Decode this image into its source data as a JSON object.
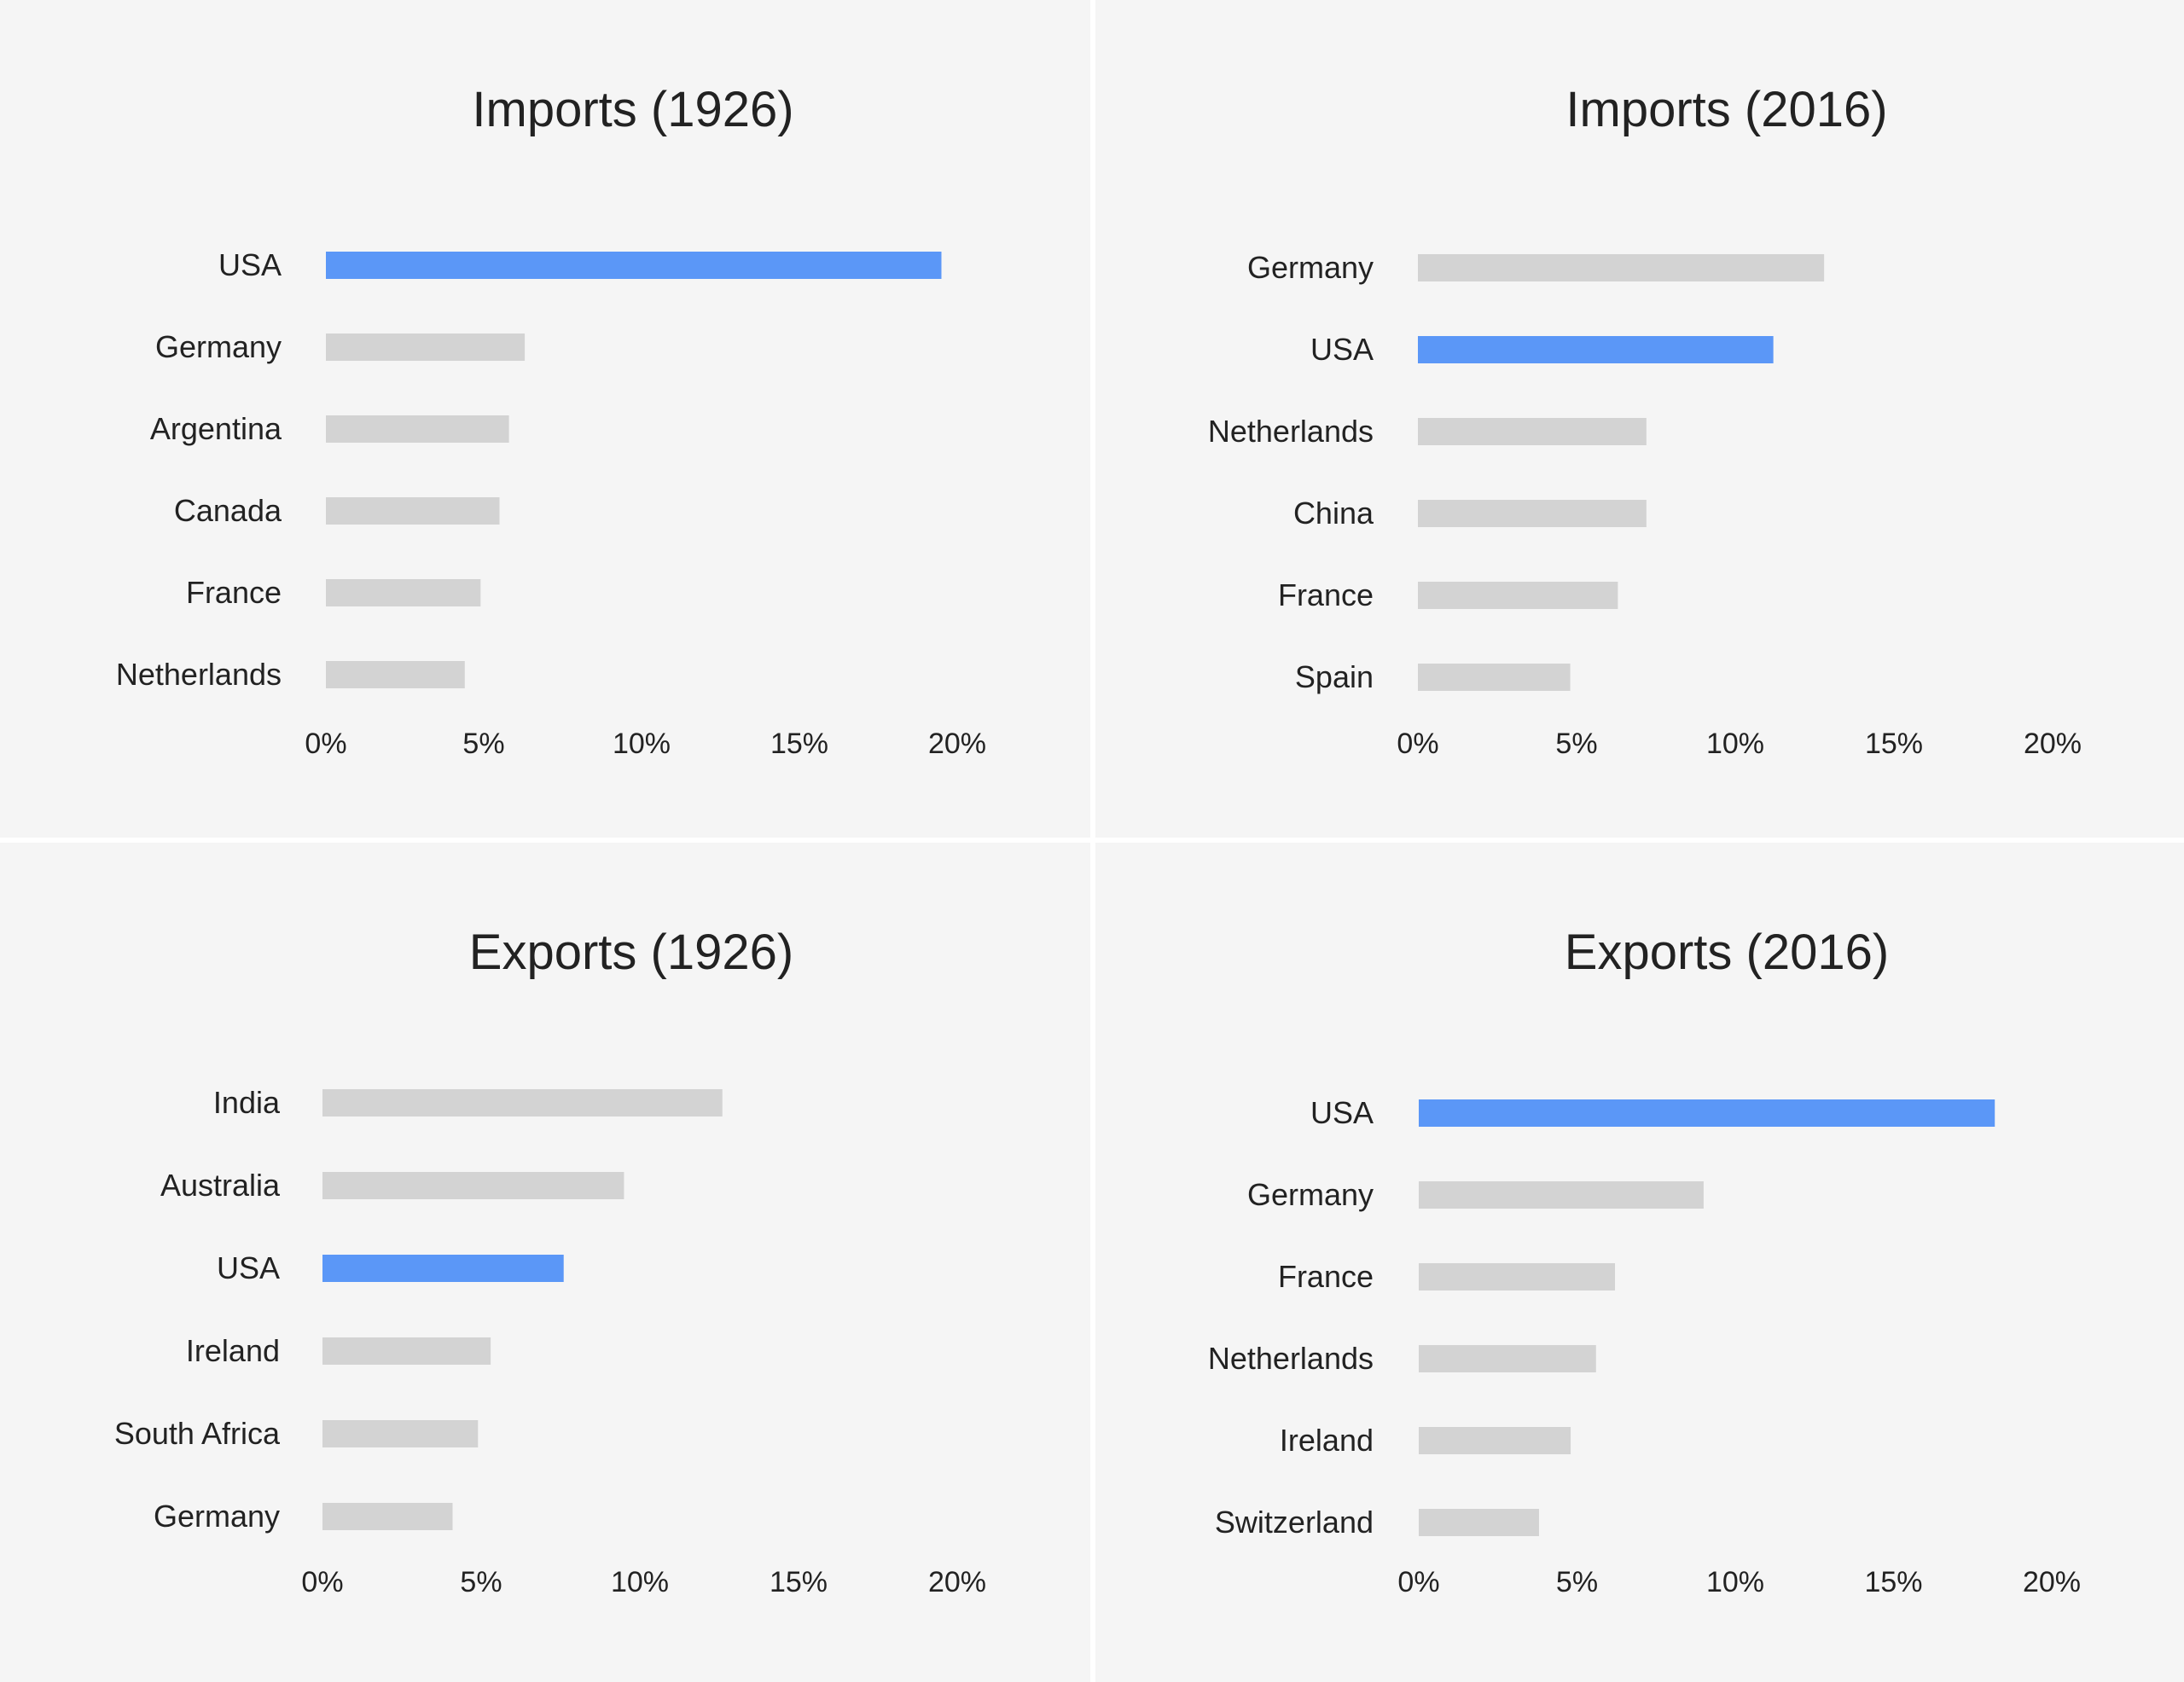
{
  "colors": {
    "highlight": "#5b97f7",
    "bar": "#d3d3d3",
    "panel_background": "#f5f5f5",
    "divider": "#ffffff",
    "text": "#222222"
  },
  "chart_data": [
    {
      "type": "bar",
      "orientation": "horizontal",
      "title": "Imports (1926)",
      "categories": [
        "USA",
        "Germany",
        "Argentina",
        "Canada",
        "France",
        "Netherlands"
      ],
      "values": [
        19.5,
        6.3,
        5.8,
        5.5,
        4.9,
        4.4
      ],
      "highlight": "USA",
      "xlim": [
        0,
        20
      ],
      "xticks": [
        "0%",
        "5%",
        "10%",
        "15%",
        "20%"
      ],
      "xlabel": "",
      "ylabel": ""
    },
    {
      "type": "bar",
      "orientation": "horizontal",
      "title": "Imports (2016)",
      "categories": [
        "Germany",
        "USA",
        "Netherlands",
        "China",
        "France",
        "Spain"
      ],
      "values": [
        12.8,
        11.2,
        7.2,
        7.2,
        6.3,
        4.8
      ],
      "highlight": "USA",
      "xlim": [
        0,
        20
      ],
      "xticks": [
        "0%",
        "5%",
        "10%",
        "15%",
        "20%"
      ],
      "xlabel": "",
      "ylabel": ""
    },
    {
      "type": "bar",
      "orientation": "horizontal",
      "title": "Exports (1926)",
      "categories": [
        "India",
        "Australia",
        "USA",
        "Ireland",
        "South Africa",
        "Germany"
      ],
      "values": [
        12.6,
        9.5,
        7.6,
        5.3,
        4.9,
        4.1
      ],
      "highlight": "USA",
      "xlim": [
        0,
        20
      ],
      "xticks": [
        "0%",
        "5%",
        "10%",
        "15%",
        "20%"
      ],
      "xlabel": "",
      "ylabel": ""
    },
    {
      "type": "bar",
      "orientation": "horizontal",
      "title": "Exports (2016)",
      "categories": [
        "USA",
        "Germany",
        "France",
        "Netherlands",
        "Ireland",
        "Switzerland"
      ],
      "values": [
        18.2,
        9.0,
        6.2,
        5.6,
        4.8,
        3.8
      ],
      "highlight": "USA",
      "xlim": [
        0,
        20
      ],
      "xticks": [
        "0%",
        "5%",
        "10%",
        "15%",
        "20%"
      ],
      "xlabel": "",
      "ylabel": ""
    }
  ]
}
